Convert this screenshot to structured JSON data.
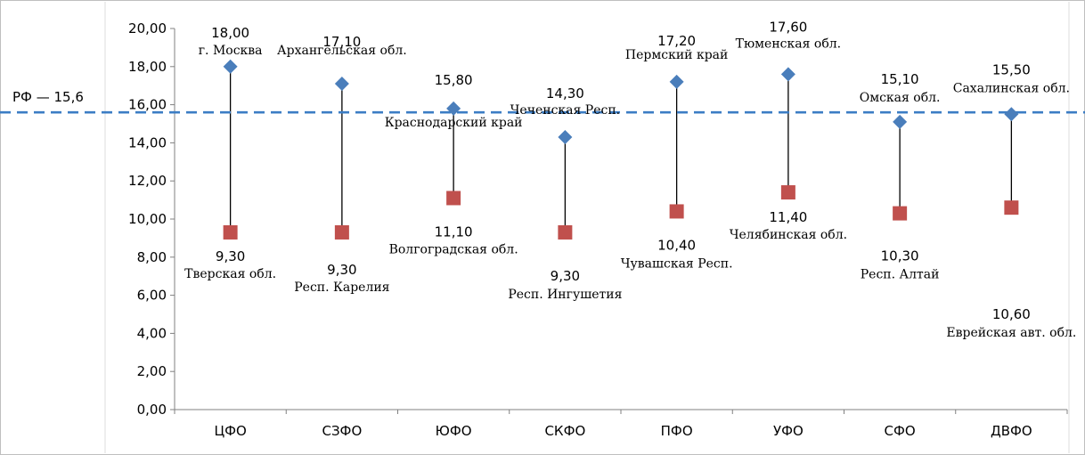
{
  "chart_data": {
    "type": "scatter",
    "ylim": [
      0,
      20
    ],
    "y_ticks": [
      "0,00",
      "2,00",
      "4,00",
      "6,00",
      "8,00",
      "10,00",
      "12,00",
      "14,00",
      "16,00",
      "18,00",
      "20,00"
    ],
    "categories": [
      "ЦФО",
      "СЗФО",
      "ЮФО",
      "СКФО",
      "ПФО",
      "УФО",
      "СФО",
      "ДВФО"
    ],
    "series": [
      {
        "marker": "diamond",
        "color": "#4a7ebb",
        "values": [
          18.0,
          17.1,
          15.8,
          14.3,
          17.2,
          17.6,
          15.1,
          15.5
        ],
        "value_labels": [
          "18,00",
          "17,10",
          "15,80",
          "14,30",
          "17,20",
          "17,60",
          "15,10",
          "15,50"
        ],
        "region_labels": [
          "г. Москва",
          "Архангельская обл.",
          "Краснодарский край",
          "Чеченская Респ.",
          "Пермский край",
          "Тюменская обл.",
          "Омская обл.",
          "Сахалинская обл."
        ]
      },
      {
        "marker": "square",
        "color": "#c0504d",
        "values": [
          9.3,
          9.3,
          11.1,
          9.3,
          10.4,
          11.4,
          10.3,
          10.6
        ],
        "value_labels": [
          "9,30",
          "9,30",
          "11,10",
          "9,30",
          "10,40",
          "11,40",
          "10,30",
          "10,60"
        ],
        "region_labels": [
          "Тверская обл.",
          "Респ. Карелия",
          "Волгоградская обл.",
          "Респ. Ингушетия",
          "Чувашская Респ.",
          "Челябинская обл.",
          "Респ. Алтай",
          "Еврейская авт. обл."
        ]
      }
    ],
    "reference_line": {
      "label": "РФ — 15,6",
      "value": 15.6,
      "color": "#3c7dc4"
    },
    "grid": false,
    "legend": "none"
  }
}
